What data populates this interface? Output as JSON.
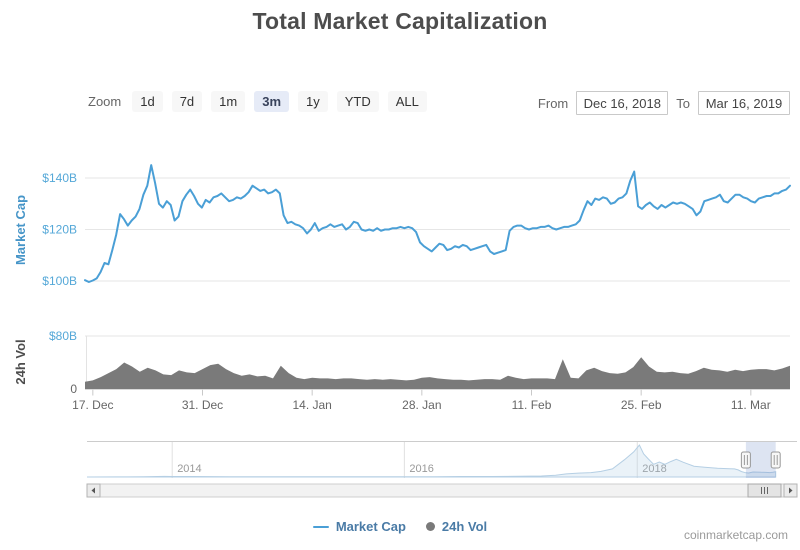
{
  "header": {
    "title": "Total Market Capitalization"
  },
  "toolbar": {
    "zoom_label": "Zoom",
    "buttons": [
      "1d",
      "7d",
      "1m",
      "3m",
      "1y",
      "YTD",
      "ALL"
    ],
    "selected": "3m",
    "from_label": "From",
    "from_value": "Dec 16, 2018",
    "to_label": "To",
    "to_value": "Mar 16, 2019"
  },
  "legend": {
    "items": [
      {
        "label": "Market Cap",
        "marker": "line",
        "color": "#4a9fd6"
      },
      {
        "label": "24h Vol",
        "marker": "circle",
        "color": "#7a7a7a"
      }
    ]
  },
  "watermark": "coinmarketcap.com",
  "chart_data": {
    "type": "line",
    "title": "Total Market Capitalization",
    "x": {
      "start": "Dec 16, 2018",
      "end": "Mar 16, 2019",
      "total_days": 90,
      "tick_labels": [
        "17. Dec",
        "31. Dec",
        "14. Jan",
        "28. Jan",
        "11. Feb",
        "25. Feb",
        "11. Mar"
      ],
      "tick_days": [
        1,
        15,
        29,
        43,
        57,
        71,
        85
      ]
    },
    "panes": [
      {
        "name": "Market Cap",
        "type": "line",
        "color": "#4a9fd6",
        "axis_title": "Market Cap",
        "axis_title_color": "#4695c8",
        "ylim": [
          98,
          149
        ],
        "yticks": [
          {
            "v": 100,
            "label": "$100B",
            "color": "#55a8d8"
          },
          {
            "v": 120,
            "label": "$120B",
            "color": "#55a8d8"
          },
          {
            "v": 140,
            "label": "$140B",
            "color": "#55a8d8"
          }
        ],
        "points_per_day": 2,
        "values_billions": [
          100.3,
          99.6,
          100.2,
          101.0,
          103.5,
          107.0,
          106.5,
          112.0,
          118.0,
          126.0,
          124.0,
          121.5,
          123.5,
          125.0,
          128.0,
          133.5,
          137.0,
          145.0,
          138.0,
          130.0,
          128.5,
          131.0,
          129.5,
          123.5,
          125.0,
          131.0,
          133.5,
          135.5,
          133.0,
          130.0,
          128.5,
          131.5,
          130.5,
          132.5,
          133.0,
          134.0,
          132.5,
          131.0,
          131.5,
          132.5,
          132.0,
          133.0,
          134.5,
          137.0,
          136.0,
          135.0,
          135.5,
          134.0,
          134.5,
          135.5,
          134.0,
          125.5,
          122.5,
          123.0,
          122.0,
          121.5,
          120.5,
          118.5,
          120.0,
          122.5,
          119.5,
          120.5,
          121.0,
          122.0,
          121.0,
          121.5,
          122.0,
          120.0,
          121.0,
          123.0,
          122.5,
          120.0,
          119.5,
          120.0,
          119.5,
          120.5,
          119.5,
          120.0,
          120.0,
          120.5,
          120.5,
          121.0,
          120.5,
          121.0,
          120.5,
          119.0,
          115.0,
          113.5,
          112.5,
          111.5,
          113.0,
          114.5,
          114.0,
          112.0,
          112.5,
          113.5,
          113.0,
          114.0,
          113.5,
          112.0,
          112.5,
          113.0,
          113.5,
          114.0,
          111.5,
          110.5,
          111.0,
          111.5,
          112.0,
          119.5,
          121.0,
          121.5,
          121.5,
          120.5,
          120.0,
          120.5,
          120.5,
          121.0,
          121.0,
          121.5,
          120.5,
          120.0,
          120.5,
          121.0,
          121.0,
          121.5,
          122.0,
          123.5,
          127.5,
          131.0,
          129.5,
          132.0,
          131.5,
          132.5,
          132.0,
          130.0,
          130.5,
          132.0,
          132.5,
          134.0,
          139.0,
          142.5,
          129.0,
          128.0,
          129.5,
          130.5,
          129.0,
          128.0,
          129.5,
          128.5,
          129.5,
          130.5,
          130.0,
          130.5,
          130.0,
          129.0,
          128.0,
          125.5,
          127.0,
          131.0,
          131.5,
          132.0,
          132.5,
          133.5,
          131.0,
          130.5,
          132.0,
          133.5,
          133.5,
          132.5,
          132.0,
          131.0,
          130.5,
          132.0,
          132.5,
          133.0,
          133.0,
          134.0,
          134.0,
          135.0,
          135.5,
          137.0
        ]
      },
      {
        "name": "24h Vol",
        "type": "area",
        "color": "#7a7a7a",
        "axis_title": "24h Vol",
        "axis_title_color": "#4d4d4d",
        "ylim": [
          0,
          80
        ],
        "yticks": [
          {
            "v": 0,
            "label": "0",
            "color": "#666666"
          },
          {
            "v": 80,
            "label": "$80B",
            "color": "#55a8d8"
          }
        ],
        "points_per_day": 1,
        "values_billions": [
          11,
          13,
          18,
          24,
          30,
          40,
          34,
          26,
          32,
          28,
          22,
          21,
          28,
          25,
          24,
          30,
          36,
          38,
          30,
          24,
          20,
          22,
          19,
          20,
          16,
          35,
          24,
          17,
          15,
          17,
          16,
          16,
          15,
          16,
          16,
          15,
          14,
          15,
          14,
          15,
          14,
          13,
          14,
          17,
          18,
          16,
          15,
          14,
          14,
          13,
          14,
          15,
          15,
          14,
          20,
          17,
          15,
          16,
          16,
          16,
          15,
          45,
          17,
          16,
          28,
          32,
          27,
          24,
          23,
          25,
          33,
          48,
          34,
          26,
          25,
          26,
          24,
          23,
          27,
          32,
          29,
          28,
          26,
          29,
          27,
          29,
          30,
          30,
          28,
          31,
          35
        ]
      }
    ],
    "navigator": {
      "years": [
        {
          "label": "2014",
          "f": 0.12
        },
        {
          "label": "2016",
          "f": 0.447
        },
        {
          "label": "2018",
          "f": 0.775
        }
      ],
      "selection": [
        0.928,
        0.97
      ],
      "vmax_billions": 830,
      "history": [
        [
          0.0,
          1
        ],
        [
          0.04,
          2
        ],
        [
          0.08,
          6
        ],
        [
          0.109,
          15
        ],
        [
          0.12,
          13
        ],
        [
          0.15,
          12
        ],
        [
          0.2,
          8
        ],
        [
          0.25,
          5.5
        ],
        [
          0.3,
          4
        ],
        [
          0.36,
          4.5
        ],
        [
          0.4,
          5.5
        ],
        [
          0.447,
          7
        ],
        [
          0.49,
          9
        ],
        [
          0.528,
          12
        ],
        [
          0.57,
          14
        ],
        [
          0.61,
          18
        ],
        [
          0.64,
          25
        ],
        [
          0.66,
          45
        ],
        [
          0.675,
          80
        ],
        [
          0.692,
          100
        ],
        [
          0.71,
          115
        ],
        [
          0.724,
          145
        ],
        [
          0.74,
          210
        ],
        [
          0.757,
          450
        ],
        [
          0.77,
          650
        ],
        [
          0.778,
          830
        ],
        [
          0.784,
          600
        ],
        [
          0.79,
          480
        ],
        [
          0.798,
          330
        ],
        [
          0.806,
          390
        ],
        [
          0.814,
          330
        ],
        [
          0.822,
          400
        ],
        [
          0.83,
          460
        ],
        [
          0.84,
          380
        ],
        [
          0.855,
          280
        ],
        [
          0.87,
          255
        ],
        [
          0.888,
          225
        ],
        [
          0.905,
          215
        ],
        [
          0.912,
          210
        ],
        [
          0.917,
          185
        ],
        [
          0.922,
          140
        ],
        [
          0.928,
          110
        ],
        [
          0.932,
          104
        ],
        [
          0.938,
          130
        ],
        [
          0.944,
          128
        ],
        [
          0.95,
          122
        ],
        [
          0.956,
          120
        ],
        [
          0.962,
          114
        ],
        [
          0.966,
          121
        ],
        [
          0.97,
          137
        ]
      ]
    }
  }
}
